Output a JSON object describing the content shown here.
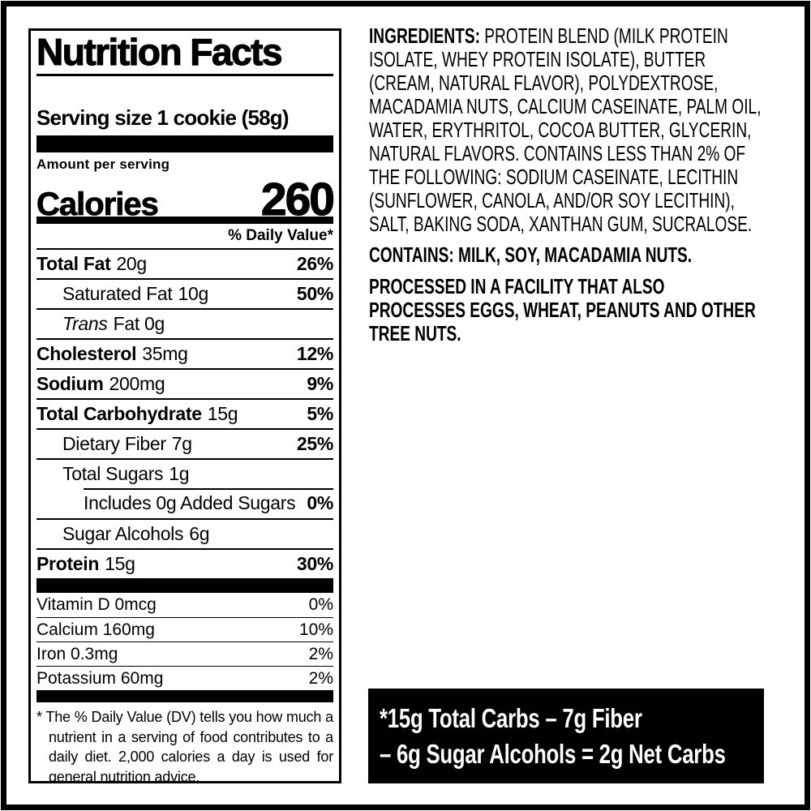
{
  "colors": {
    "ink": "#000000",
    "paper": "#ffffff",
    "callout_bg": "#000000",
    "callout_text": "#ffffff"
  },
  "label": {
    "title": "Nutrition Facts",
    "serving_size": "Serving size 1 cookie (58g)",
    "amount_per_serving": "Amount per serving",
    "calories_label": "Calories",
    "calories_value": "260",
    "daily_value_header": "% Daily Value*",
    "rows": [
      {
        "name": "Total Fat",
        "amount": "20g",
        "dv": "26%"
      },
      {
        "name": "Saturated Fat",
        "amount": "10g",
        "dv": "50%"
      },
      {
        "name": "Trans",
        "amount": "Fat 0g",
        "dv": ""
      },
      {
        "name": "Cholesterol",
        "amount": "35mg",
        "dv": "12%"
      },
      {
        "name": "Sodium",
        "amount": "200mg",
        "dv": "9%"
      },
      {
        "name": "Total Carbohydrate",
        "amount": "15g",
        "dv": "5%"
      },
      {
        "name": "Dietary Fiber",
        "amount": "7g",
        "dv": "25%"
      },
      {
        "name": "Total Sugars",
        "amount": "1g",
        "dv": ""
      },
      {
        "name": "Includes 0g Added Sugars",
        "amount": "",
        "dv": "0%"
      },
      {
        "name": "Sugar Alcohols",
        "amount": "6g",
        "dv": ""
      },
      {
        "name": "Protein",
        "amount": "15g",
        "dv": "30%"
      }
    ],
    "vitamins": [
      {
        "name": "Vitamin D 0mcg",
        "dv": "0%"
      },
      {
        "name": "Calcium 160mg",
        "dv": "10%"
      },
      {
        "name": "Iron 0.3mg",
        "dv": "2%"
      },
      {
        "name": "Potassium 60mg",
        "dv": "2%"
      }
    ],
    "footnote": "* The % Daily Value (DV) tells you how much a nutrient in a serving of food contributes to a daily diet. 2,000 calories a day is used for general nutrition advice."
  },
  "ingredients": {
    "heading": "INGREDIENTS:",
    "body": "PROTEIN BLEND (MILK PROTEIN ISOLATE, WHEY PROTEIN ISOLATE), BUTTER (CREAM, NATURAL FLAVOR), POLYDEXTROSE, MACADAMIA NUTS, CALCIUM CASEINATE, PALM OIL, WATER, ERYTHRITOL, COCOA BUTTER, GLYCERIN, NATURAL FLAVORS. CONTAINS LESS THAN 2% OF THE FOLLOWING: SODIUM CASEINATE, LECITHIN (SUNFLOWER, CANOLA, AND/OR SOY LECITHIN), SALT, BAKING SODA, XANTHAN GUM, SUCRALOSE.",
    "contains": "CONTAINS: MILK, SOY, MACADAMIA NUTS.",
    "facility": "PROCESSED IN A FACILITY THAT ALSO PROCESSES EGGS, WHEAT, PEANUTS AND OTHER TREE NUTS."
  },
  "net_carbs": {
    "line1": "*15g Total Carbs – 7g Fiber",
    "line2": "– 6g Sugar Alcohols = 2g Net Carbs"
  }
}
